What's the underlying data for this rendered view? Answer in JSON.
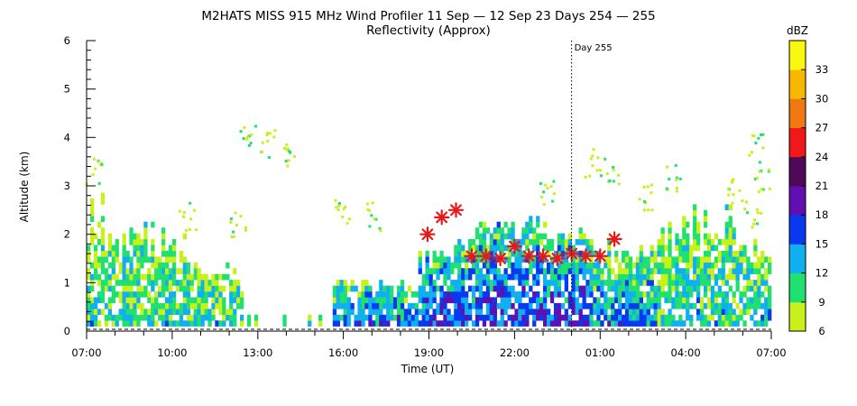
{
  "chart_data": {
    "type": "heatmap",
    "title": "M2HATS MISS 915 MHz Wind Profiler  11 Sep — 12 Sep 23 Days 254 — 255",
    "subtitle": "Reflectivity (Approx)",
    "xlabel": "Time (UT)",
    "ylabel": "Altitude (km)",
    "x_ticks": [
      "07:00",
      "10:00",
      "13:00",
      "16:00",
      "19:00",
      "22:00",
      "01:00",
      "04:00",
      "07:00"
    ],
    "x_hours": [
      7,
      10,
      13,
      16,
      19,
      22,
      25,
      28,
      31
    ],
    "xlim_hours": [
      7,
      31
    ],
    "y_ticks": [
      "0",
      "1",
      "2",
      "3",
      "4",
      "5",
      "6"
    ],
    "ylim": [
      0,
      6
    ],
    "day_marker": {
      "label": "Day 255",
      "x_hour": 24
    },
    "colorbar": {
      "label": "dBZ",
      "tick_labels": [
        "6",
        "9",
        "12",
        "15",
        "18",
        "21",
        "24",
        "27",
        "30",
        "33"
      ],
      "levels": [
        6,
        9,
        12,
        15,
        18,
        21,
        24,
        27,
        30,
        33,
        36
      ],
      "colors": [
        "#c8f01a",
        "#20e070",
        "#10b0f0",
        "#0838f0",
        "#6010b0",
        "#500858",
        "#f01818",
        "#f07810",
        "#f8b800",
        "#f8f810"
      ]
    },
    "series": [
      {
        "type": "scatter",
        "marker": "asterisk",
        "color": "#e81818",
        "x_hours": [
          18.95,
          19.45,
          19.95,
          20.5,
          21.0,
          21.5,
          22.0,
          22.5,
          23.0,
          23.5,
          24.0,
          24.5,
          25.0,
          25.5
        ],
        "y_km": [
          2.0,
          2.35,
          2.5,
          1.55,
          1.55,
          1.5,
          1.75,
          1.55,
          1.55,
          1.5,
          1.6,
          1.55,
          1.55,
          1.9
        ]
      }
    ]
  }
}
